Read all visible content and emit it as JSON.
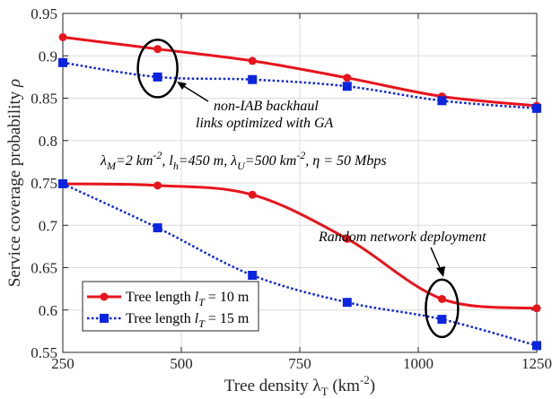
{
  "chart_data": {
    "type": "line",
    "xlabel": "Tree density λ_T (km^-2)",
    "ylabel": "Service coverage probability ρ",
    "xlim": [
      250,
      1250
    ],
    "ylim": [
      0.55,
      0.95
    ],
    "xticks": [
      250,
      500,
      750,
      1000,
      1250
    ],
    "yticks": [
      0.55,
      0.6,
      0.65,
      0.7,
      0.75,
      0.8,
      0.85,
      0.9,
      0.95
    ],
    "xtick_labels": [
      "250",
      "500",
      "750",
      "1000",
      "1250"
    ],
    "ytick_labels": [
      "0.55",
      "0.6",
      "0.65",
      "0.7",
      "0.75",
      "0.8",
      "0.85",
      "0.9",
      "0.95"
    ],
    "grid": true,
    "legend_position": "bottom-left",
    "series": [
      {
        "group": "optimized",
        "legend_index": 0,
        "color": "#e8141c",
        "style": "solid",
        "marker": "circle",
        "x": [
          250,
          450,
          650,
          850,
          1050,
          1250
        ],
        "y": [
          0.922,
          0.908,
          0.894,
          0.874,
          0.852,
          0.841
        ]
      },
      {
        "group": "optimized",
        "legend_index": 1,
        "color": "#0a24e0",
        "style": "dotted",
        "marker": "square",
        "x": [
          250,
          450,
          650,
          850,
          1050,
          1250
        ],
        "y": [
          0.892,
          0.875,
          0.872,
          0.864,
          0.847,
          0.838
        ]
      },
      {
        "group": "random",
        "legend_index": 0,
        "color": "#e8141c",
        "style": "solid",
        "marker": "circle",
        "x": [
          250,
          450,
          650,
          850,
          1050,
          1250
        ],
        "y": [
          0.749,
          0.747,
          0.736,
          0.684,
          0.613,
          0.602
        ]
      },
      {
        "group": "random",
        "legend_index": 1,
        "color": "#0a24e0",
        "style": "dotted",
        "marker": "square",
        "x": [
          250,
          450,
          650,
          850,
          1050,
          1250
        ],
        "y": [
          0.749,
          0.697,
          0.641,
          0.609,
          0.589,
          0.558
        ]
      }
    ],
    "legend": [
      {
        "prefix": "Tree length ",
        "var": "l",
        "sub": "T",
        "suffix": " = 10 m"
      },
      {
        "prefix": "Tree length ",
        "var": "l",
        "sub": "T",
        "suffix": " = 15 m"
      }
    ],
    "annotations": {
      "nonIAB_line1": "non-IAB backhaul",
      "nonIAB_line2": "links optimized with GA",
      "params": "λ_M=2 km^-2,  l_h=450 m, λ_U=500 km^-2, η = 50 Mbps",
      "random": "Random network deployment"
    }
  }
}
